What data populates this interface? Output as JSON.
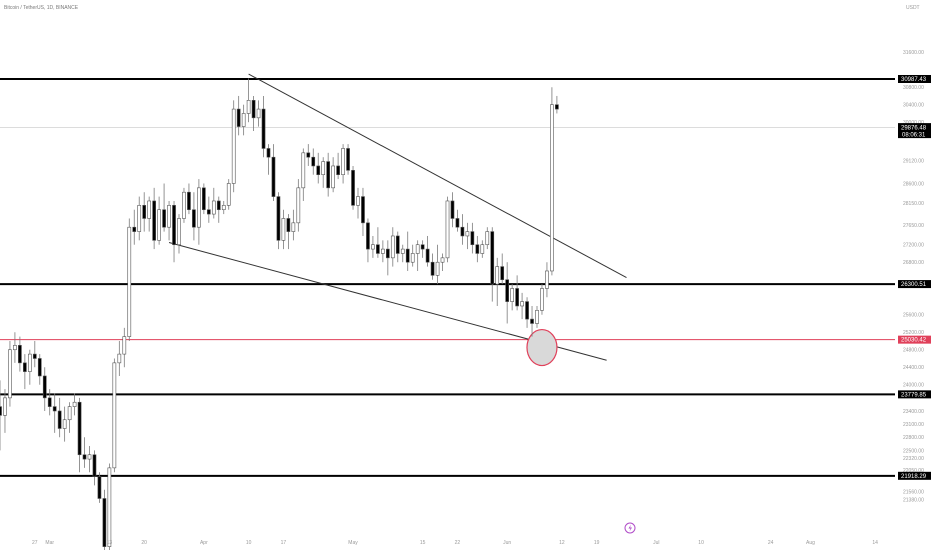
{
  "header": {
    "symbol": "Bitcoin / TetherUS, 1D, BINANCE"
  },
  "currency": "USDT",
  "price_tick_labels": [
    {
      "label": "31600.00",
      "value": 31600
    },
    {
      "label": "30800.00",
      "value": 30800
    },
    {
      "label": "30400.00",
      "value": 30400
    },
    {
      "label": "30000.00",
      "value": 30000
    },
    {
      "label": "29120.00",
      "value": 29120
    },
    {
      "label": "28600.00",
      "value": 28600
    },
    {
      "label": "28150.00",
      "value": 28150
    },
    {
      "label": "27650.00",
      "value": 27650
    },
    {
      "label": "27200.00",
      "value": 27200
    },
    {
      "label": "26800.00",
      "value": 26800
    },
    {
      "label": "25600.00",
      "value": 25600
    },
    {
      "label": "25200.00",
      "value": 25200
    },
    {
      "label": "24800.00",
      "value": 24800
    },
    {
      "label": "24400.00",
      "value": 24400
    },
    {
      "label": "24000.00",
      "value": 24000
    },
    {
      "label": "23400.00",
      "value": 23400
    },
    {
      "label": "23100.00",
      "value": 23100
    },
    {
      "label": "22800.00",
      "value": 22800
    },
    {
      "label": "22500.00",
      "value": 22500
    },
    {
      "label": "22320.00",
      "value": 22320
    },
    {
      "label": "22050.00",
      "value": 22050
    },
    {
      "label": "21560.00",
      "value": 21560
    },
    {
      "label": "21380.00",
      "value": 21380
    }
  ],
  "time_tick_labels": [
    {
      "label": "27",
      "day": -3
    },
    {
      "label": "Mar",
      "day": 0
    },
    {
      "label": "13",
      "day": 12
    },
    {
      "label": "20",
      "day": 19
    },
    {
      "label": "Apr",
      "day": 31
    },
    {
      "label": "10",
      "day": 40
    },
    {
      "label": "17",
      "day": 47
    },
    {
      "label": "May",
      "day": 61
    },
    {
      "label": "15",
      "day": 75
    },
    {
      "label": "22",
      "day": 82
    },
    {
      "label": "Jun",
      "day": 92
    },
    {
      "label": "12",
      "day": 103
    },
    {
      "label": "19",
      "day": 110
    },
    {
      "label": "Jul",
      "day": 122
    },
    {
      "label": "10",
      "day": 131
    },
    {
      "label": "24",
      "day": 145
    },
    {
      "label": "Aug",
      "day": 153
    },
    {
      "label": "14",
      "day": 166
    }
  ],
  "levels": [
    {
      "label": "30987.43",
      "value": 30987.43,
      "color": "#000000",
      "line_width": 2
    },
    {
      "label": "26300.51",
      "value": 26300.51,
      "color": "#000000",
      "line_width": 2
    },
    {
      "label": "25030.42",
      "value": 25030.42,
      "color": "#e0405a",
      "line_width": 1
    },
    {
      "label": "23779.85",
      "value": 23779.85,
      "color": "#000000",
      "line_width": 2
    },
    {
      "label": "21918.29",
      "value": 21918.29,
      "color": "#000000",
      "line_width": 2
    }
  ],
  "current_price": {
    "label": "29876.48",
    "countdown": "08:06:31",
    "value": 29876.48
  },
  "colors": {
    "bull": "#ffffff",
    "bear": "#000000",
    "wick": "#7a7a7a",
    "level_line": "#000000",
    "support_line": "#e0405a",
    "highlight_fill": "#d9d9d9"
  },
  "chart_data": {
    "type": "candlestick",
    "x_unit": "day index from 1 Mar 2023",
    "x_range": [
      -10,
      170
    ],
    "y_range": [
      21000,
      32450
    ],
    "grid": false,
    "candles": [
      [
        -10,
        23500,
        24100,
        22500,
        23300
      ],
      [
        -9,
        23300,
        23900,
        22900,
        23700
      ],
      [
        -8,
        23700,
        25000,
        23500,
        24800
      ],
      [
        -7,
        24800,
        25200,
        24500,
        24900
      ],
      [
        -6,
        24900,
        25100,
        24300,
        24500
      ],
      [
        -5,
        24500,
        24700,
        23900,
        24300
      ],
      [
        -4,
        24300,
        24800,
        24000,
        24700
      ],
      [
        -3,
        24700,
        25000,
        24400,
        24600
      ],
      [
        -2,
        24600,
        24700,
        24000,
        24200
      ],
      [
        -1,
        24200,
        24400,
        23400,
        23700
      ],
      [
        0,
        23700,
        23900,
        23300,
        23500
      ],
      [
        1,
        23500,
        23800,
        22900,
        23400
      ],
      [
        2,
        23400,
        23700,
        22800,
        23000
      ],
      [
        3,
        23000,
        23500,
        22700,
        23200
      ],
      [
        4,
        23200,
        23600,
        22900,
        23500
      ],
      [
        5,
        23500,
        23800,
        23300,
        23600
      ],
      [
        6,
        23600,
        23700,
        22000,
        22400
      ],
      [
        7,
        22400,
        22800,
        22100,
        22300
      ],
      [
        8,
        22300,
        22600,
        22000,
        22400
      ],
      [
        9,
        22400,
        22500,
        21700,
        21900
      ],
      [
        10,
        21900,
        22000,
        21300,
        21400
      ],
      [
        11,
        21400,
        21600,
        20000,
        20300
      ],
      [
        12,
        20300,
        22200,
        20100,
        22100
      ],
      [
        13,
        22100,
        24600,
        22000,
        24500
      ],
      [
        14,
        24500,
        25000,
        24200,
        24700
      ],
      [
        15,
        24700,
        25300,
        24400,
        25100
      ],
      [
        16,
        25100,
        27800,
        25000,
        27600
      ],
      [
        17,
        27600,
        28000,
        27200,
        27500
      ],
      [
        18,
        27500,
        28300,
        27300,
        28100
      ],
      [
        19,
        28100,
        28400,
        27500,
        27800
      ],
      [
        20,
        27800,
        28300,
        27500,
        28200
      ],
      [
        21,
        28200,
        28500,
        27100,
        27300
      ],
      [
        22,
        27300,
        28300,
        27200,
        28000
      ],
      [
        23,
        28000,
        28600,
        27500,
        27600
      ],
      [
        24,
        27600,
        28200,
        27300,
        28100
      ],
      [
        25,
        28100,
        28200,
        26800,
        27200
      ],
      [
        26,
        27200,
        27900,
        27000,
        27800
      ],
      [
        27,
        27800,
        28500,
        27700,
        28400
      ],
      [
        28,
        28400,
        28600,
        27900,
        28000
      ],
      [
        29,
        28000,
        28400,
        27300,
        27600
      ],
      [
        30,
        27600,
        28700,
        27200,
        28500
      ],
      [
        31,
        28500,
        28600,
        27900,
        28000
      ],
      [
        32,
        28000,
        28300,
        27700,
        27900
      ],
      [
        33,
        27900,
        28500,
        27800,
        28200
      ],
      [
        34,
        28200,
        28300,
        27700,
        28000
      ],
      [
        35,
        28000,
        28200,
        27900,
        28100
      ],
      [
        36,
        28100,
        28700,
        28000,
        28600
      ],
      [
        37,
        28600,
        30500,
        28400,
        30300
      ],
      [
        38,
        30300,
        30600,
        29700,
        29900
      ],
      [
        39,
        29900,
        30400,
        29700,
        30200
      ],
      [
        40,
        30200,
        31000,
        30000,
        30500
      ],
      [
        41,
        30500,
        30600,
        29800,
        30100
      ],
      [
        42,
        30100,
        30500,
        29900,
        30300
      ],
      [
        43,
        30300,
        30600,
        29200,
        29400
      ],
      [
        44,
        29400,
        29500,
        28800,
        29200
      ],
      [
        45,
        29200,
        29500,
        28200,
        28300
      ],
      [
        46,
        28300,
        28400,
        27100,
        27300
      ],
      [
        47,
        27300,
        28000,
        27100,
        27800
      ],
      [
        48,
        27800,
        27900,
        27100,
        27500
      ],
      [
        49,
        27500,
        28000,
        27300,
        27700
      ],
      [
        50,
        27700,
        28700,
        27500,
        28500
      ],
      [
        51,
        28500,
        29400,
        28200,
        29300
      ],
      [
        52,
        29300,
        29500,
        29000,
        29200
      ],
      [
        53,
        29200,
        29400,
        28800,
        29000
      ],
      [
        54,
        29000,
        29300,
        28600,
        28800
      ],
      [
        55,
        28800,
        29200,
        28500,
        29100
      ],
      [
        56,
        29100,
        29300,
        28300,
        28500
      ],
      [
        57,
        28500,
        29200,
        28400,
        29000
      ],
      [
        58,
        29000,
        29300,
        28700,
        28800
      ],
      [
        59,
        28800,
        29500,
        28600,
        29400
      ],
      [
        60,
        29400,
        29500,
        28800,
        28900
      ],
      [
        61,
        28900,
        29000,
        28000,
        28100
      ],
      [
        62,
        28100,
        28500,
        27800,
        28300
      ],
      [
        63,
        28300,
        28500,
        27400,
        27700
      ],
      [
        64,
        27700,
        27800,
        26800,
        27100
      ],
      [
        65,
        27100,
        27400,
        26900,
        27200
      ],
      [
        66,
        27200,
        27600,
        26900,
        27000
      ],
      [
        67,
        27000,
        27300,
        26800,
        27100
      ],
      [
        68,
        27100,
        27300,
        26500,
        26900
      ],
      [
        69,
        26900,
        27600,
        26700,
        27400
      ],
      [
        70,
        27400,
        27500,
        26800,
        27000
      ],
      [
        71,
        27000,
        27200,
        26800,
        27100
      ],
      [
        72,
        27100,
        27500,
        26600,
        26800
      ],
      [
        73,
        26800,
        27200,
        26700,
        27000
      ],
      [
        74,
        27000,
        27300,
        26600,
        27200
      ],
      [
        75,
        27200,
        27300,
        26900,
        27100
      ],
      [
        76,
        27100,
        27400,
        26700,
        26800
      ],
      [
        77,
        26800,
        27000,
        26400,
        26500
      ],
      [
        78,
        26500,
        27200,
        26300,
        26800
      ],
      [
        79,
        26800,
        27000,
        26600,
        26900
      ],
      [
        80,
        26900,
        28300,
        26800,
        28200
      ],
      [
        81,
        28200,
        28400,
        27600,
        27800
      ],
      [
        82,
        27800,
        28000,
        27500,
        27600
      ],
      [
        83,
        27600,
        27900,
        27200,
        27400
      ],
      [
        84,
        27400,
        27700,
        27100,
        27500
      ],
      [
        85,
        27500,
        27700,
        27000,
        27200
      ],
      [
        86,
        27200,
        27400,
        26800,
        27000
      ],
      [
        87,
        27000,
        27300,
        26900,
        27200
      ],
      [
        88,
        27200,
        27600,
        27100,
        27500
      ],
      [
        89,
        27500,
        27600,
        25900,
        26300
      ],
      [
        90,
        26300,
        26900,
        25800,
        26700
      ],
      [
        91,
        26700,
        27000,
        26300,
        26400
      ],
      [
        92,
        26400,
        26800,
        25400,
        25900
      ],
      [
        93,
        25900,
        26300,
        25700,
        26200
      ],
      [
        94,
        26200,
        26500,
        25700,
        25800
      ],
      [
        95,
        25800,
        26100,
        25500,
        25900
      ],
      [
        96,
        25900,
        26000,
        25300,
        25500
      ],
      [
        97,
        25500,
        25800,
        25100,
        25400
      ],
      [
        98,
        25400,
        25800,
        25300,
        25700
      ],
      [
        99,
        25700,
        26300,
        25600,
        26200
      ],
      [
        100,
        26200,
        26800,
        26000,
        26600
      ],
      [
        101,
        26600,
        30800,
        26500,
        30400
      ],
      [
        102,
        30400,
        30600,
        30200,
        30300
      ]
    ],
    "trendlines": [
      {
        "from": [
          40,
          31100
        ],
        "to": [
          116,
          26450
        ]
      },
      {
        "from": [
          24,
          27250
        ],
        "to": [
          112,
          24560
        ]
      }
    ],
    "highlight_circle": {
      "center": [
        99,
        24850
      ]
    }
  }
}
